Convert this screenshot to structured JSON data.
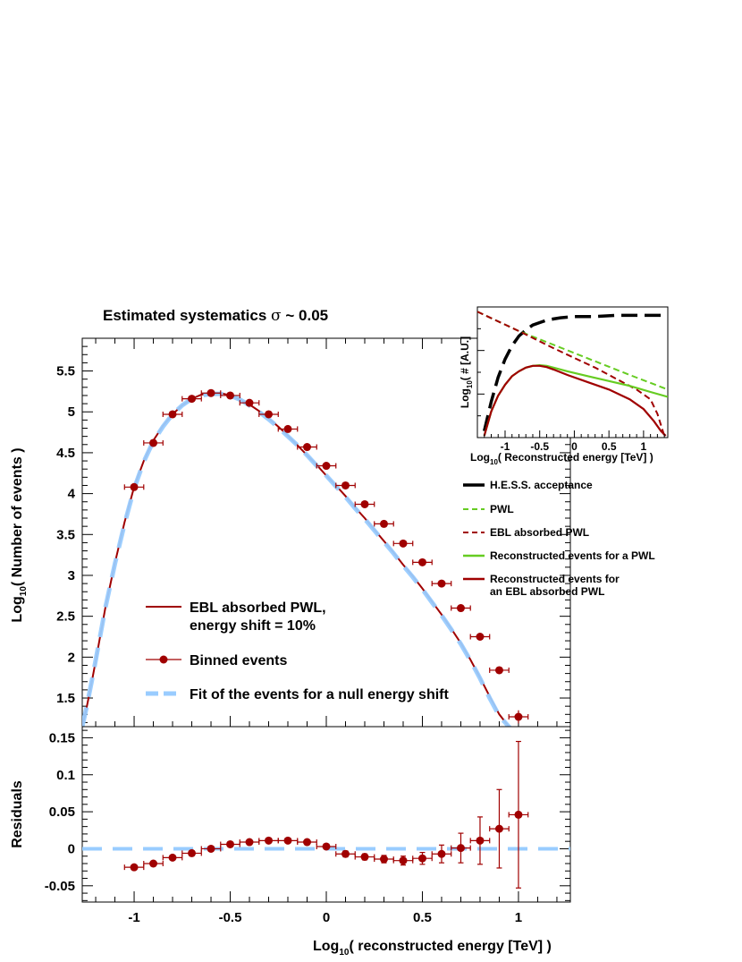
{
  "chart_data": [
    {
      "type": "line",
      "title": {
        "pre": "Estimated systematics ",
        "sigma": "σ",
        "post": " ~ 0.05"
      },
      "ylabel": {
        "pre": "Log",
        "sub": "10",
        "post": "( Number of events )"
      },
      "xlabel": {
        "pre": "Log",
        "sub": "10",
        "post": "( reconstructed energy [TeV] )"
      },
      "xlim": [
        -1.27,
        1.27
      ],
      "ylim": [
        1.15,
        5.9
      ],
      "x_ticks": [
        -1,
        -0.5,
        0,
        0.5,
        1
      ],
      "y_ticks": [
        1.5,
        2,
        2.5,
        3,
        3.5,
        4,
        4.5,
        5,
        5.5
      ],
      "y_tick_labels": [
        "1.5",
        "2",
        "2.5",
        "3",
        "3.5",
        "4",
        "4.5",
        "5",
        "5.5"
      ],
      "series": [
        {
          "name": "EBL absorbed PWL,",
          "name_line2": "energy shift = 10%",
          "color": "#a00000",
          "x": [
            -1.27,
            -1.25,
            -1.22,
            -1.2,
            -1.15,
            -1.1,
            -1.05,
            -1.0,
            -0.95,
            -0.9,
            -0.85,
            -0.8,
            -0.75,
            -0.7,
            -0.65,
            -0.6,
            -0.55,
            -0.5,
            -0.45,
            -0.4,
            -0.35,
            -0.3,
            -0.25,
            -0.2,
            -0.15,
            -0.1,
            -0.05,
            0.0,
            0.05,
            0.1,
            0.15,
            0.2,
            0.25,
            0.3,
            0.35,
            0.4,
            0.45,
            0.5,
            0.55,
            0.6,
            0.65,
            0.7,
            0.75,
            0.8,
            0.85,
            0.9,
            0.95,
            0.98,
            1.0,
            1.02,
            1.05
          ],
          "y": [
            1.15,
            1.35,
            1.7,
            1.95,
            2.6,
            3.15,
            3.65,
            4.08,
            4.4,
            4.65,
            4.83,
            4.97,
            5.08,
            5.16,
            5.21,
            5.23,
            5.23,
            5.2,
            5.15,
            5.09,
            5.01,
            4.92,
            4.82,
            4.71,
            4.59,
            4.47,
            4.35,
            4.22,
            4.1,
            3.97,
            3.83,
            3.7,
            3.56,
            3.42,
            3.28,
            3.13,
            2.99,
            2.84,
            2.68,
            2.52,
            2.35,
            2.17,
            1.97,
            1.75,
            1.52,
            1.3,
            1.15,
            1.05,
            1.0,
            0.96,
            0.9
          ]
        },
        {
          "name": "Binned events",
          "color": "#a00000",
          "x": [
            -1.0,
            -0.9,
            -0.8,
            -0.7,
            -0.6,
            -0.5,
            -0.4,
            -0.3,
            -0.2,
            -0.1,
            0.0,
            0.1,
            0.2,
            0.3,
            0.4,
            0.5,
            0.6,
            0.7,
            0.8,
            0.9,
            1.0
          ],
          "y": [
            4.08,
            4.62,
            4.97,
            5.16,
            5.23,
            5.2,
            5.11,
            4.97,
            4.79,
            4.57,
            4.34,
            4.1,
            3.87,
            3.63,
            3.39,
            3.16,
            2.9,
            2.6,
            2.25,
            1.84,
            1.27
          ],
          "x_err": 0.05,
          "y_err": [
            0.02,
            0.02,
            0.02,
            0.02,
            0.02,
            0.02,
            0.02,
            0.02,
            0.02,
            0.02,
            0.02,
            0.02,
            0.02,
            0.02,
            0.02,
            0.02,
            0.02,
            0.02,
            0.03,
            0.04,
            0.08
          ]
        },
        {
          "name": "Fit of the events for a null energy shift",
          "color": "#99ccff",
          "x": [
            -1.27,
            -1.25,
            -1.22,
            -1.2,
            -1.15,
            -1.1,
            -1.05,
            -1.0,
            -0.95,
            -0.9,
            -0.85,
            -0.8,
            -0.75,
            -0.7,
            -0.65,
            -0.6,
            -0.55,
            -0.5,
            -0.45,
            -0.4,
            -0.35,
            -0.3,
            -0.25,
            -0.2,
            -0.15,
            -0.1,
            -0.05,
            0.0,
            0.05,
            0.1,
            0.15,
            0.2,
            0.25,
            0.3,
            0.35,
            0.4,
            0.45,
            0.5,
            0.55,
            0.6,
            0.65,
            0.7,
            0.75,
            0.8,
            0.85,
            0.9,
            0.95,
            0.98,
            1.0
          ],
          "y": [
            1.15,
            1.36,
            1.71,
            1.96,
            2.6,
            3.14,
            3.63,
            4.06,
            4.39,
            4.64,
            4.82,
            4.97,
            5.08,
            5.16,
            5.2,
            5.22,
            5.22,
            5.2,
            5.15,
            5.08,
            5.0,
            4.91,
            4.81,
            4.7,
            4.59,
            4.47,
            4.34,
            4.22,
            4.09,
            3.96,
            3.82,
            3.69,
            3.55,
            3.41,
            3.27,
            3.12,
            2.98,
            2.83,
            2.67,
            2.51,
            2.34,
            2.16,
            1.96,
            1.74,
            1.5,
            1.28,
            1.15,
            1.08,
            1.03
          ]
        }
      ],
      "legend": "bottom-left",
      "grid": false
    },
    {
      "type": "scatter",
      "ylabel": "Residuals",
      "xlabel": {
        "pre": "Log",
        "sub": "10",
        "post": "( reconstructed energy [TeV] )"
      },
      "xlim": [
        -1.27,
        1.27
      ],
      "ylim": [
        -0.072,
        0.165
      ],
      "x_ticks": [
        -1,
        -0.5,
        0,
        0.5,
        1
      ],
      "x_tick_labels": [
        "-1",
        "-0.5",
        "0",
        "0.5",
        "1"
      ],
      "y_ticks": [
        -0.05,
        0,
        0.05,
        0.1,
        0.15
      ],
      "y_tick_labels": [
        "-0.05",
        "0",
        "0.05",
        "0.1",
        "0.15"
      ],
      "series": [
        {
          "name": "Residuals",
          "color": "#a00000",
          "x": [
            -1.0,
            -0.9,
            -0.8,
            -0.7,
            -0.6,
            -0.5,
            -0.4,
            -0.3,
            -0.2,
            -0.1,
            0.0,
            0.1,
            0.2,
            0.3,
            0.4,
            0.5,
            0.6,
            0.7,
            0.8,
            0.9,
            1.0
          ],
          "y": [
            -0.025,
            -0.02,
            -0.012,
            -0.006,
            0.0,
            0.006,
            0.009,
            0.011,
            0.011,
            0.009,
            0.003,
            -0.007,
            -0.011,
            -0.014,
            -0.016,
            -0.013,
            -0.007,
            0.001,
            0.011,
            0.027,
            0.046
          ],
          "x_err": 0.05,
          "y_err": [
            0.003,
            0.003,
            0.003,
            0.003,
            0.003,
            0.003,
            0.003,
            0.003,
            0.003,
            0.003,
            0.003,
            0.004,
            0.004,
            0.005,
            0.006,
            0.008,
            0.012,
            0.02,
            0.032,
            0.053,
            0.099
          ]
        },
        {
          "name": "Zero reference",
          "color": "#99ccff",
          "x": [
            -1.27,
            1.27
          ],
          "y": [
            0,
            0
          ]
        }
      ]
    },
    {
      "type": "line",
      "inset": true,
      "ylabel": {
        "pre": "Log",
        "sub": "10",
        "post": "( #   [A.U.]"
      },
      "xlabel": {
        "pre": "Log",
        "sub": "10",
        "post": "( Reconstructed energy [TeV] )"
      },
      "xlim": [
        -1.4,
        1.35
      ],
      "ylim": [
        0,
        1
      ],
      "x_ticks": [
        -1,
        -0.5,
        0,
        0.5,
        1
      ],
      "x_tick_labels": [
        "-1",
        "-0.5",
        "0",
        "0.5",
        "1"
      ],
      "series": [
        {
          "name": "H.E.S.S. acceptance",
          "color": "#000000",
          "style": "long-dash",
          "x": [
            -1.3,
            -1.2,
            -1.1,
            -1.0,
            -0.9,
            -0.8,
            -0.7,
            -0.6,
            -0.5,
            -0.4,
            -0.3,
            -0.2,
            0.0,
            0.3,
            0.6,
            1.0,
            1.35
          ],
          "y": [
            0.04,
            0.28,
            0.48,
            0.63,
            0.74,
            0.82,
            0.87,
            0.91,
            0.93,
            0.95,
            0.96,
            0.97,
            0.98,
            0.98,
            0.99,
            0.99,
            0.99
          ]
        },
        {
          "name": "PWL",
          "color": "#66cc22",
          "style": "dash",
          "x": [
            -1.4,
            -0.8,
            0.0,
            0.8,
            1.35
          ],
          "y": [
            1.02,
            0.86,
            0.68,
            0.5,
            0.38
          ]
        },
        {
          "name": "EBL absorbed PWL",
          "color": "#a00000",
          "style": "dash",
          "x": [
            -1.4,
            -0.8,
            -0.3,
            0.0,
            0.3,
            0.6,
            0.9,
            1.1,
            1.2,
            1.3
          ],
          "y": [
            1.02,
            0.86,
            0.72,
            0.64,
            0.56,
            0.47,
            0.38,
            0.3,
            0.18,
            0.0
          ]
        },
        {
          "name": "Reconstructed events for a PWL",
          "color": "#66cc22",
          "style": "solid",
          "x": [
            -1.3,
            -1.2,
            -1.1,
            -1.0,
            -0.9,
            -0.8,
            -0.7,
            -0.6,
            -0.5,
            -0.4,
            -0.3,
            -0.1,
            0.2,
            0.5,
            0.8,
            1.1,
            1.35
          ],
          "y": [
            0.0,
            0.2,
            0.33,
            0.42,
            0.49,
            0.53,
            0.56,
            0.575,
            0.58,
            0.575,
            0.56,
            0.53,
            0.49,
            0.45,
            0.41,
            0.36,
            0.32
          ]
        },
        {
          "name": "Reconstructed events for an EBL absorbed  PWL",
          "name_line1": "Reconstructed events for",
          "name_line2": "an EBL absorbed  PWL",
          "color": "#a00000",
          "style": "solid",
          "x": [
            -1.3,
            -1.2,
            -1.1,
            -1.0,
            -0.9,
            -0.8,
            -0.7,
            -0.6,
            -0.5,
            -0.4,
            -0.3,
            -0.1,
            0.2,
            0.5,
            0.8,
            1.0,
            1.15,
            1.25,
            1.32
          ],
          "y": [
            0.0,
            0.2,
            0.33,
            0.42,
            0.49,
            0.53,
            0.56,
            0.575,
            0.575,
            0.565,
            0.545,
            0.5,
            0.44,
            0.38,
            0.3,
            0.22,
            0.12,
            0.04,
            0.0
          ]
        }
      ]
    }
  ]
}
